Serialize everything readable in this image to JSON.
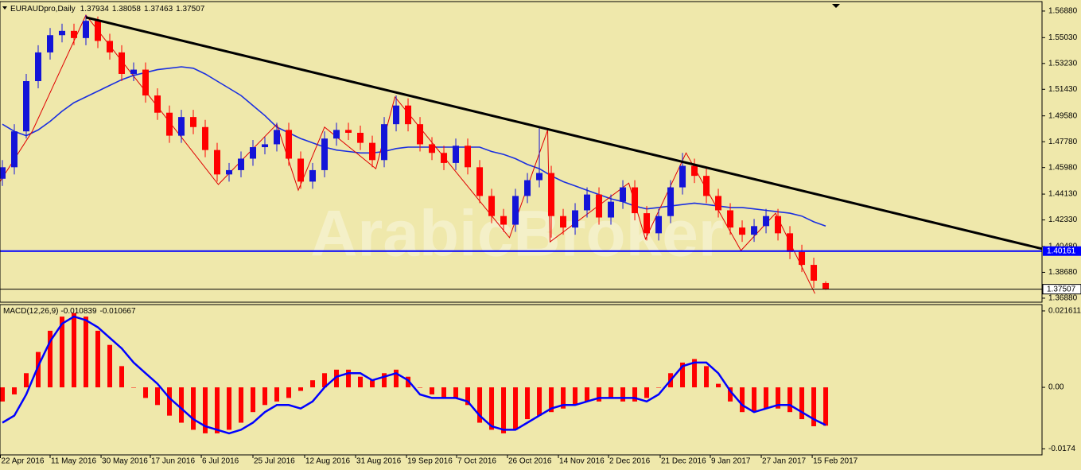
{
  "chart_data": [
    {
      "type": "candlestick",
      "title": "EURAUDpro,Daily",
      "watermark": "ArabicBroker",
      "xlim": [
        -0.2,
        87.13
      ],
      "ylim": [
        1.366,
        1.5754
      ],
      "yticks": [
        {
          "value": 1.5688,
          "label": "1.56880"
        },
        {
          "value": 1.5503,
          "label": "1.55030"
        },
        {
          "value": 1.5323,
          "label": "1.53230"
        },
        {
          "value": 1.5143,
          "label": "1.51430"
        },
        {
          "value": 1.4958,
          "label": "1.49580"
        },
        {
          "value": 1.4778,
          "label": "1.47780"
        },
        {
          "value": 1.4598,
          "label": "1.45980"
        },
        {
          "value": 1.4413,
          "label": "1.44130"
        },
        {
          "value": 1.4233,
          "label": "1.42330"
        },
        {
          "value": 1.4048,
          "label": "1.40480"
        },
        {
          "value": 1.3868,
          "label": "1.38680"
        },
        {
          "value": 1.3688,
          "label": "1.36880"
        }
      ],
      "open": [
        1.452,
        1.46,
        1.485,
        1.52,
        1.54,
        1.552,
        1.555,
        1.55,
        1.562,
        1.548,
        1.54,
        1.525,
        1.528,
        1.51,
        1.498,
        1.482,
        1.495,
        1.488,
        1.472,
        1.455,
        1.458,
        1.466,
        1.474,
        1.476,
        1.486,
        1.466,
        1.45,
        1.458,
        1.48,
        1.486,
        1.484,
        1.477,
        1.465,
        1.49,
        1.503,
        1.49,
        1.476,
        1.47,
        1.463,
        1.475,
        1.46,
        1.44,
        1.426,
        1.42,
        1.44,
        1.451,
        1.456,
        1.426,
        1.418,
        1.43,
        1.441,
        1.425,
        1.436,
        1.446,
        1.428,
        1.414,
        1.426,
        1.446,
        1.461,
        1.454,
        1.44,
        1.43,
        1.418,
        1.413,
        1.419,
        1.426,
        1.414,
        1.401,
        1.392,
        1.37934
      ],
      "high": [
        1.465,
        1.49,
        1.525,
        1.545,
        1.557,
        1.56,
        1.56,
        1.566,
        1.565,
        1.553,
        1.545,
        1.533,
        1.533,
        1.515,
        1.503,
        1.5,
        1.5,
        1.493,
        1.477,
        1.463,
        1.471,
        1.479,
        1.481,
        1.491,
        1.491,
        1.471,
        1.463,
        1.485,
        1.491,
        1.491,
        1.489,
        1.482,
        1.495,
        1.51,
        1.508,
        1.495,
        1.481,
        1.475,
        1.48,
        1.48,
        1.465,
        1.445,
        1.431,
        1.445,
        1.456,
        1.487,
        1.461,
        1.431,
        1.435,
        1.446,
        1.446,
        1.441,
        1.451,
        1.451,
        1.433,
        1.431,
        1.451,
        1.47,
        1.466,
        1.459,
        1.445,
        1.435,
        1.423,
        1.424,
        1.431,
        1.431,
        1.419,
        1.406,
        1.397,
        1.38058
      ],
      "low": [
        1.447,
        1.455,
        1.48,
        1.515,
        1.535,
        1.547,
        1.545,
        1.545,
        1.543,
        1.535,
        1.52,
        1.52,
        1.505,
        1.493,
        1.477,
        1.477,
        1.483,
        1.467,
        1.45,
        1.45,
        1.453,
        1.461,
        1.469,
        1.471,
        1.461,
        1.445,
        1.445,
        1.453,
        1.475,
        1.479,
        1.472,
        1.46,
        1.46,
        1.485,
        1.485,
        1.471,
        1.465,
        1.458,
        1.458,
        1.455,
        1.435,
        1.421,
        1.415,
        1.415,
        1.435,
        1.446,
        1.411,
        1.413,
        1.413,
        1.425,
        1.42,
        1.42,
        1.431,
        1.423,
        1.409,
        1.409,
        1.421,
        1.441,
        1.449,
        1.435,
        1.425,
        1.413,
        1.408,
        1.408,
        1.414,
        1.409,
        1.396,
        1.387,
        1.376,
        1.37463
      ],
      "close": [
        1.46,
        1.485,
        1.52,
        1.54,
        1.552,
        1.555,
        1.55,
        1.562,
        1.548,
        1.54,
        1.525,
        1.528,
        1.51,
        1.498,
        1.482,
        1.495,
        1.488,
        1.472,
        1.455,
        1.458,
        1.466,
        1.474,
        1.476,
        1.486,
        1.466,
        1.45,
        1.458,
        1.48,
        1.486,
        1.484,
        1.477,
        1.465,
        1.49,
        1.503,
        1.49,
        1.476,
        1.47,
        1.463,
        1.475,
        1.46,
        1.44,
        1.426,
        1.42,
        1.44,
        1.451,
        1.456,
        1.426,
        1.418,
        1.43,
        1.441,
        1.425,
        1.436,
        1.446,
        1.428,
        1.414,
        1.426,
        1.446,
        1.461,
        1.454,
        1.44,
        1.43,
        1.418,
        1.413,
        1.419,
        1.426,
        1.414,
        1.401,
        1.392,
        1.381,
        1.37507
      ],
      "up_color": "#1414d8",
      "down_color": "#ff0000",
      "moving_average": {
        "color": "#1a2fe0",
        "values": [
          1.49,
          1.485,
          1.482,
          1.486,
          1.492,
          1.499,
          1.505,
          1.509,
          1.513,
          1.517,
          1.521,
          1.524,
          1.526,
          1.528,
          1.529,
          1.53,
          1.529,
          1.525,
          1.52,
          1.515,
          1.51,
          1.503,
          1.496,
          1.488,
          1.484,
          1.48,
          1.477,
          1.474,
          1.472,
          1.471,
          1.47,
          1.47,
          1.471,
          1.473,
          1.474,
          1.474,
          1.474,
          1.474,
          1.474,
          1.474,
          1.474,
          1.471,
          1.469,
          1.466,
          1.462,
          1.459,
          1.454,
          1.45,
          1.447,
          1.444,
          1.441,
          1.438,
          1.436,
          1.433,
          1.431,
          1.432,
          1.433,
          1.434,
          1.435,
          1.434,
          1.433,
          1.432,
          1.432,
          1.431,
          1.43,
          1.429,
          1.428,
          1.426,
          1.422,
          1.419
        ]
      },
      "zigzag": {
        "color": "#e00000",
        "x": [
          -0.2,
          2.5,
          7,
          18.1,
          23,
          24.8,
          27,
          31.3,
          32.9,
          42.5,
          45.7,
          45.9,
          52.5,
          53.9,
          57.3,
          61.9,
          64.8,
          68.1
        ],
        "y": [
          1.45,
          1.485,
          1.566,
          1.448,
          1.49,
          1.444,
          1.488,
          1.459,
          1.509,
          1.411,
          1.486,
          1.408,
          1.449,
          1.41,
          1.47,
          1.402,
          1.428,
          1.372
        ]
      },
      "trendline": {
        "color": "#000000",
        "x": [
          7,
          87.13
        ],
        "y": [
          1.5644,
          1.4032
        ]
      },
      "level": {
        "value": 1.40161,
        "color": "#0000ff"
      },
      "last_price_color": "#000000"
    },
    {
      "type": "macd",
      "title": "MACD(12,26,9)",
      "xlim": [
        -0.2,
        87.13
      ],
      "ylim": [
        -0.0191,
        0.0234
      ],
      "yticks": [
        0.021611,
        {
          "value": 0,
          "label": "0.00"
        },
        -0.0174
      ],
      "histogram": {
        "color": "#ff0000",
        "values": [
          -0.004,
          -0.002,
          0.004,
          0.01,
          0.016,
          0.02,
          0.021,
          0.02,
          0.016,
          0.012,
          0.006,
          0.0,
          -0.003,
          -0.005,
          -0.008,
          -0.01,
          -0.012,
          -0.013,
          -0.013,
          -0.012,
          -0.01,
          -0.007,
          -0.005,
          -0.004,
          -0.003,
          -0.001,
          0.002,
          0.004,
          0.005,
          0.005,
          0.003,
          0.002,
          0.004,
          0.005,
          0.003,
          0.0,
          -0.002,
          -0.003,
          -0.003,
          -0.005,
          -0.01,
          -0.012,
          -0.013,
          -0.012,
          -0.009,
          -0.008,
          -0.007,
          -0.006,
          -0.005,
          -0.004,
          -0.004,
          -0.003,
          -0.004,
          -0.004,
          -0.003,
          0.0,
          0.004,
          0.007,
          0.008,
          0.006,
          0.001,
          -0.004,
          -0.007,
          -0.007,
          -0.006,
          -0.006,
          -0.007,
          -0.009,
          -0.011,
          -0.010839
        ]
      },
      "signal": {
        "color": "#0000ff",
        "values": [
          -0.01,
          -0.008,
          -0.002,
          0.006,
          0.013,
          0.018,
          0.02,
          0.019,
          0.017,
          0.014,
          0.011,
          0.007,
          0.004,
          0.001,
          -0.003,
          -0.006,
          -0.009,
          -0.011,
          -0.012,
          -0.013,
          -0.012,
          -0.01,
          -0.007,
          -0.005,
          -0.005,
          -0.006,
          -0.004,
          0.0,
          0.003,
          0.004,
          0.004,
          0.002,
          0.003,
          0.004,
          0.002,
          -0.002,
          -0.003,
          -0.003,
          -0.003,
          -0.004,
          -0.008,
          -0.011,
          -0.012,
          -0.012,
          -0.01,
          -0.008,
          -0.006,
          -0.005,
          -0.005,
          -0.004,
          -0.003,
          -0.003,
          -0.003,
          -0.003,
          -0.004,
          -0.002,
          0.002,
          0.006,
          0.007,
          0.007,
          0.004,
          -0.001,
          -0.005,
          -0.007,
          -0.006,
          -0.005,
          -0.005,
          -0.007,
          -0.009,
          -0.010667
        ]
      },
      "xticks": [
        {
          "value": -0.2,
          "label": "22 Apr 2016"
        },
        {
          "value": 4,
          "label": "11 May 2016"
        },
        {
          "value": 8.27,
          "label": "30 May 2016"
        },
        {
          "value": 12.4,
          "label": "17 Jun 2016"
        },
        {
          "value": 16.67,
          "label": "6 Jul 2016"
        },
        {
          "value": 21,
          "label": "25 Jul 2016"
        },
        {
          "value": 25.33,
          "label": "12 Aug 2016"
        },
        {
          "value": 29.6,
          "label": "31 Aug 2016"
        },
        {
          "value": 33.87,
          "label": "19 Sep 2016"
        },
        {
          "value": 38.07,
          "label": "7 Oct 2016"
        },
        {
          "value": 42.33,
          "label": "26 Oct 2016"
        },
        {
          "value": 46.6,
          "label": "14 Nov 2016"
        },
        {
          "value": 50.8,
          "label": "2 Dec 2016"
        },
        {
          "value": 55.13,
          "label": "21 Dec 2016"
        },
        {
          "value": 59.33,
          "label": "9 Jan 2017"
        },
        {
          "value": 63.6,
          "label": "27 Jan 2017"
        },
        {
          "value": 67.87,
          "label": "15 Feb 2017"
        }
      ]
    }
  ]
}
